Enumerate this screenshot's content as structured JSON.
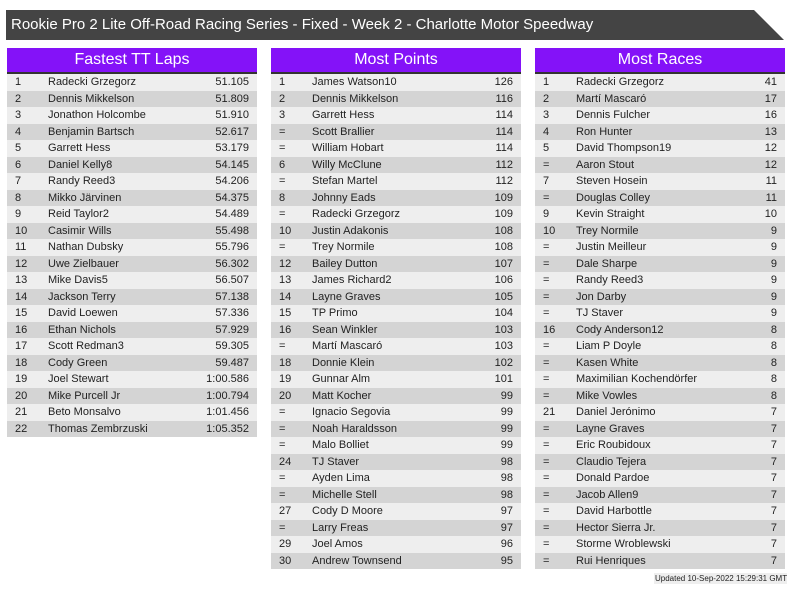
{
  "title": "Rookie Pro 2 Lite Off-Road Racing Series - Fixed - Week 2 - Charlotte Motor Speedway",
  "colors": {
    "header": "#8412f8",
    "titlebar": "#444444",
    "row_light": "#eeeeee",
    "row_dark": "#d4d4d4"
  },
  "tables": [
    {
      "heading": "Fastest TT Laps",
      "rows": [
        [
          "1",
          "Radecki Grzegorz",
          "51.105"
        ],
        [
          "2",
          "Dennis Mikkelson",
          "51.809"
        ],
        [
          "3",
          "Jonathon Holcombe",
          "51.910"
        ],
        [
          "4",
          "Benjamin Bartsch",
          "52.617"
        ],
        [
          "5",
          "Garrett Hess",
          "53.179"
        ],
        [
          "6",
          "Daniel Kelly8",
          "54.145"
        ],
        [
          "7",
          "Randy Reed3",
          "54.206"
        ],
        [
          "8",
          "Mikko Järvinen",
          "54.375"
        ],
        [
          "9",
          "Reid Taylor2",
          "54.489"
        ],
        [
          "10",
          "Casimir Wills",
          "55.498"
        ],
        [
          "11",
          "Nathan Dubsky",
          "55.796"
        ],
        [
          "12",
          "Uwe Zielbauer",
          "56.302"
        ],
        [
          "13",
          "Mike Davis5",
          "56.507"
        ],
        [
          "14",
          "Jackson Terry",
          "57.138"
        ],
        [
          "15",
          "David Loewen",
          "57.336"
        ],
        [
          "16",
          "Ethan Nichols",
          "57.929"
        ],
        [
          "17",
          "Scott Redman3",
          "59.305"
        ],
        [
          "18",
          "Cody Green",
          "59.487"
        ],
        [
          "19",
          "Joel Stewart",
          "1:00.586"
        ],
        [
          "20",
          "Mike Purcell Jr",
          "1:00.794"
        ],
        [
          "21",
          "Beto Monsalvo",
          "1:01.456"
        ],
        [
          "22",
          "Thomas Zembrzuski",
          "1:05.352"
        ]
      ]
    },
    {
      "heading": "Most Points",
      "rows": [
        [
          "1",
          "James Watson10",
          "126"
        ],
        [
          "2",
          "Dennis Mikkelson",
          "116"
        ],
        [
          "3",
          "Garrett Hess",
          "114"
        ],
        [
          "=",
          "Scott Brallier",
          "114"
        ],
        [
          "=",
          "William Hobart",
          "114"
        ],
        [
          "6",
          "Willy McClune",
          "112"
        ],
        [
          "=",
          "Stefan Martel",
          "112"
        ],
        [
          "8",
          "Johnny Eads",
          "109"
        ],
        [
          "=",
          "Radecki Grzegorz",
          "109"
        ],
        [
          "10",
          "Justin Adakonis",
          "108"
        ],
        [
          "=",
          "Trey Normile",
          "108"
        ],
        [
          "12",
          "Bailey Dutton",
          "107"
        ],
        [
          "13",
          "James Richard2",
          "106"
        ],
        [
          "14",
          "Layne Graves",
          "105"
        ],
        [
          "15",
          "TP Primo",
          "104"
        ],
        [
          "16",
          "Sean Winkler",
          "103"
        ],
        [
          "=",
          "Martí Mascaró",
          "103"
        ],
        [
          "18",
          "Donnie Klein",
          "102"
        ],
        [
          "19",
          "Gunnar Alm",
          "101"
        ],
        [
          "20",
          "Matt Kocher",
          "99"
        ],
        [
          "=",
          "Ignacio Segovia",
          "99"
        ],
        [
          "=",
          "Noah Haraldsson",
          "99"
        ],
        [
          "=",
          "Malo Bolliet",
          "99"
        ],
        [
          "24",
          "TJ Staver",
          "98"
        ],
        [
          "=",
          "Ayden Lima",
          "98"
        ],
        [
          "=",
          "Michelle Stell",
          "98"
        ],
        [
          "27",
          "Cody D Moore",
          "97"
        ],
        [
          "=",
          "Larry Freas",
          "97"
        ],
        [
          "29",
          "Joel Amos",
          "96"
        ],
        [
          "30",
          "Andrew Townsend",
          "95"
        ]
      ]
    },
    {
      "heading": "Most Races",
      "rows": [
        [
          "1",
          "Radecki Grzegorz",
          "41"
        ],
        [
          "2",
          "Martí Mascaró",
          "17"
        ],
        [
          "3",
          "Dennis Fulcher",
          "16"
        ],
        [
          "4",
          "Ron Hunter",
          "13"
        ],
        [
          "5",
          "David Thompson19",
          "12"
        ],
        [
          "=",
          "Aaron Stout",
          "12"
        ],
        [
          "7",
          "Steven Hosein",
          "11"
        ],
        [
          "=",
          "Douglas Colley",
          "11"
        ],
        [
          "9",
          "Kevin Straight",
          "10"
        ],
        [
          "10",
          "Trey Normile",
          "9"
        ],
        [
          "=",
          "Justin Meilleur",
          "9"
        ],
        [
          "=",
          "Dale Sharpe",
          "9"
        ],
        [
          "=",
          "Randy Reed3",
          "9"
        ],
        [
          "=",
          "Jon Darby",
          "9"
        ],
        [
          "=",
          "TJ Staver",
          "9"
        ],
        [
          "16",
          "Cody Anderson12",
          "8"
        ],
        [
          "=",
          "Liam P Doyle",
          "8"
        ],
        [
          "=",
          "Kasen White",
          "8"
        ],
        [
          "=",
          "Maximilian Kochendörfer",
          "8"
        ],
        [
          "=",
          "Mike Vowles",
          "8"
        ],
        [
          "21",
          "Daniel Jerónimo",
          "7"
        ],
        [
          "=",
          "Layne Graves",
          "7"
        ],
        [
          "=",
          "Eric Roubidoux",
          "7"
        ],
        [
          "=",
          "Claudio Tejera",
          "7"
        ],
        [
          "=",
          "Donald Pardoe",
          "7"
        ],
        [
          "=",
          "Jacob Allen9",
          "7"
        ],
        [
          "=",
          "David Harbottle",
          "7"
        ],
        [
          "=",
          "Hector Sierra Jr.",
          "7"
        ],
        [
          "=",
          "Storme Wroblewski",
          "7"
        ],
        [
          "=",
          "Rui Henriques",
          "7"
        ]
      ]
    }
  ],
  "footer": "Updated 10-Sep-2022 15:29:31 GMT"
}
